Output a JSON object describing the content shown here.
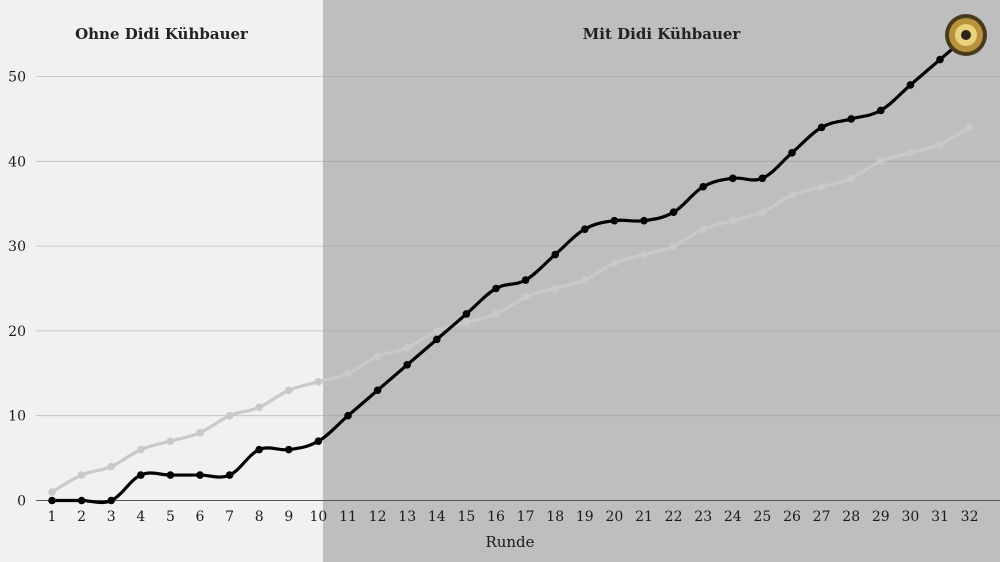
{
  "chart_data": {
    "type": "line",
    "title": "",
    "xlabel": "Runde",
    "ylabel": "",
    "categories": [
      1,
      2,
      3,
      4,
      5,
      6,
      7,
      8,
      9,
      10,
      11,
      12,
      13,
      14,
      15,
      16,
      17,
      18,
      19,
      20,
      21,
      22,
      23,
      24,
      25,
      26,
      27,
      28,
      29,
      30,
      31,
      32
    ],
    "ylim": [
      0,
      55
    ],
    "yticks": [
      0,
      10,
      20,
      30,
      40,
      50
    ],
    "grid": true,
    "regions": [
      {
        "label": "Ohne Didi Kühbauer",
        "from": 1,
        "to": 10,
        "color": "#f1f1f1"
      },
      {
        "label": "Mit Didi Kühbauer",
        "from": 10,
        "to": 32,
        "color": "#bebebe"
      }
    ],
    "series": [
      {
        "color": "#c9c9c9",
        "values": [
          1,
          3,
          4,
          6,
          7,
          8,
          10,
          11,
          13,
          14,
          15,
          17,
          18,
          20,
          21,
          22,
          24,
          25,
          26,
          28,
          29,
          30,
          32,
          33,
          34,
          36,
          37,
          38,
          40,
          41,
          42,
          44
        ]
      },
      {
        "color": "#000000",
        "values": [
          0,
          0,
          0,
          3,
          3,
          3,
          3,
          6,
          6,
          7,
          10,
          13,
          16,
          19,
          22,
          25,
          26,
          29,
          32,
          33,
          33,
          34,
          37,
          38,
          38,
          41,
          44,
          45,
          46,
          49,
          52,
          55
        ]
      }
    ]
  },
  "badge_icon": "club-crest-icon"
}
